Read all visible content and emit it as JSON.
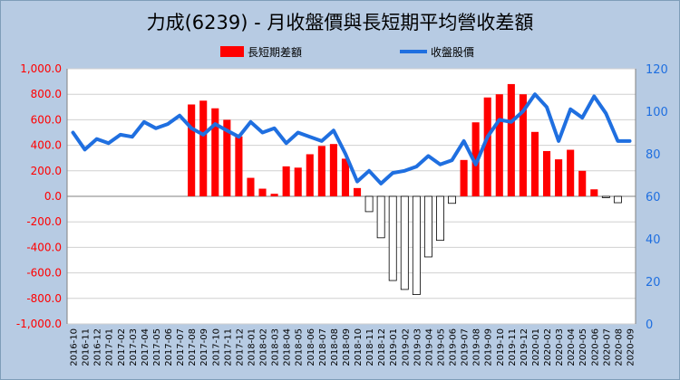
{
  "chart_data": {
    "type": "bar",
    "title": "力成(6239) - 月收盤價與長短期平均營收差額",
    "categories": [
      "2016-10",
      "2016-11",
      "2016-12",
      "2017-01",
      "2017-02",
      "2017-03",
      "2017-04",
      "2017-05",
      "2017-06",
      "2017-07",
      "2017-08",
      "2017-09",
      "2017-10",
      "2017-11",
      "2017-12",
      "2018-01",
      "2018-02",
      "2018-03",
      "2018-04",
      "2018-05",
      "2018-06",
      "2018-07",
      "2018-08",
      "2018-09",
      "2018-10",
      "2018-11",
      "2018-12",
      "2019-01",
      "2019-02",
      "2019-03",
      "2019-04",
      "2019-05",
      "2019-06",
      "2019-07",
      "2019-08",
      "2019-09",
      "2019-10",
      "2019-11",
      "2019-12",
      "2020-01",
      "2020-02",
      "2020-03",
      "2020-04",
      "2020-05",
      "2020-06",
      "2020-07",
      "2020-08",
      "2020-09"
    ],
    "series": [
      {
        "name": "長短期差額",
        "axis": "left",
        "values": [
          0,
          0,
          0,
          0,
          0,
          0,
          0,
          0,
          0,
          0,
          720,
          750,
          690,
          600,
          470,
          145,
          60,
          20,
          235,
          225,
          330,
          395,
          410,
          295,
          65,
          -120,
          -325,
          -660,
          -730,
          -770,
          -475,
          -345,
          -55,
          285,
          580,
          775,
          800,
          880,
          800,
          505,
          355,
          290,
          365,
          200,
          55,
          -10,
          -50,
          0
        ]
      },
      {
        "name": "收盤股價",
        "axis": "right",
        "values": [
          90,
          82,
          87,
          85,
          89,
          88,
          95,
          92,
          94,
          98,
          92,
          89,
          94,
          91,
          88,
          95,
          90,
          92,
          85,
          90,
          88,
          86,
          91,
          80,
          67,
          72,
          66,
          71,
          72,
          74,
          79,
          75,
          77,
          86,
          75,
          88,
          96,
          95,
          100,
          108,
          102,
          86,
          101,
          97,
          107,
          99,
          86,
          86
        ]
      }
    ],
    "ylim": [
      -1000,
      1000
    ],
    "y_ticks": [
      "1,000.0",
      "800.0",
      "600.0",
      "400.0",
      "200.0",
      "0.0",
      "-200.0",
      "-400.0",
      "-600.0",
      "-800.0",
      "-1,000.0"
    ],
    "y2lim": [
      0,
      120
    ],
    "y2_ticks": [
      "120",
      "100",
      "80",
      "60",
      "40",
      "20",
      "0"
    ],
    "legend_position": "top-center",
    "grid": true,
    "colors": {
      "positive_bar": "#ff0000",
      "negative_bar": "#ffffff",
      "line": "#1f6fe0",
      "axis_left_text": "#ff0000",
      "axis_right_text": "#1f6fe0",
      "background": "#b7cbe3",
      "plot_background": "#ffffff"
    }
  }
}
